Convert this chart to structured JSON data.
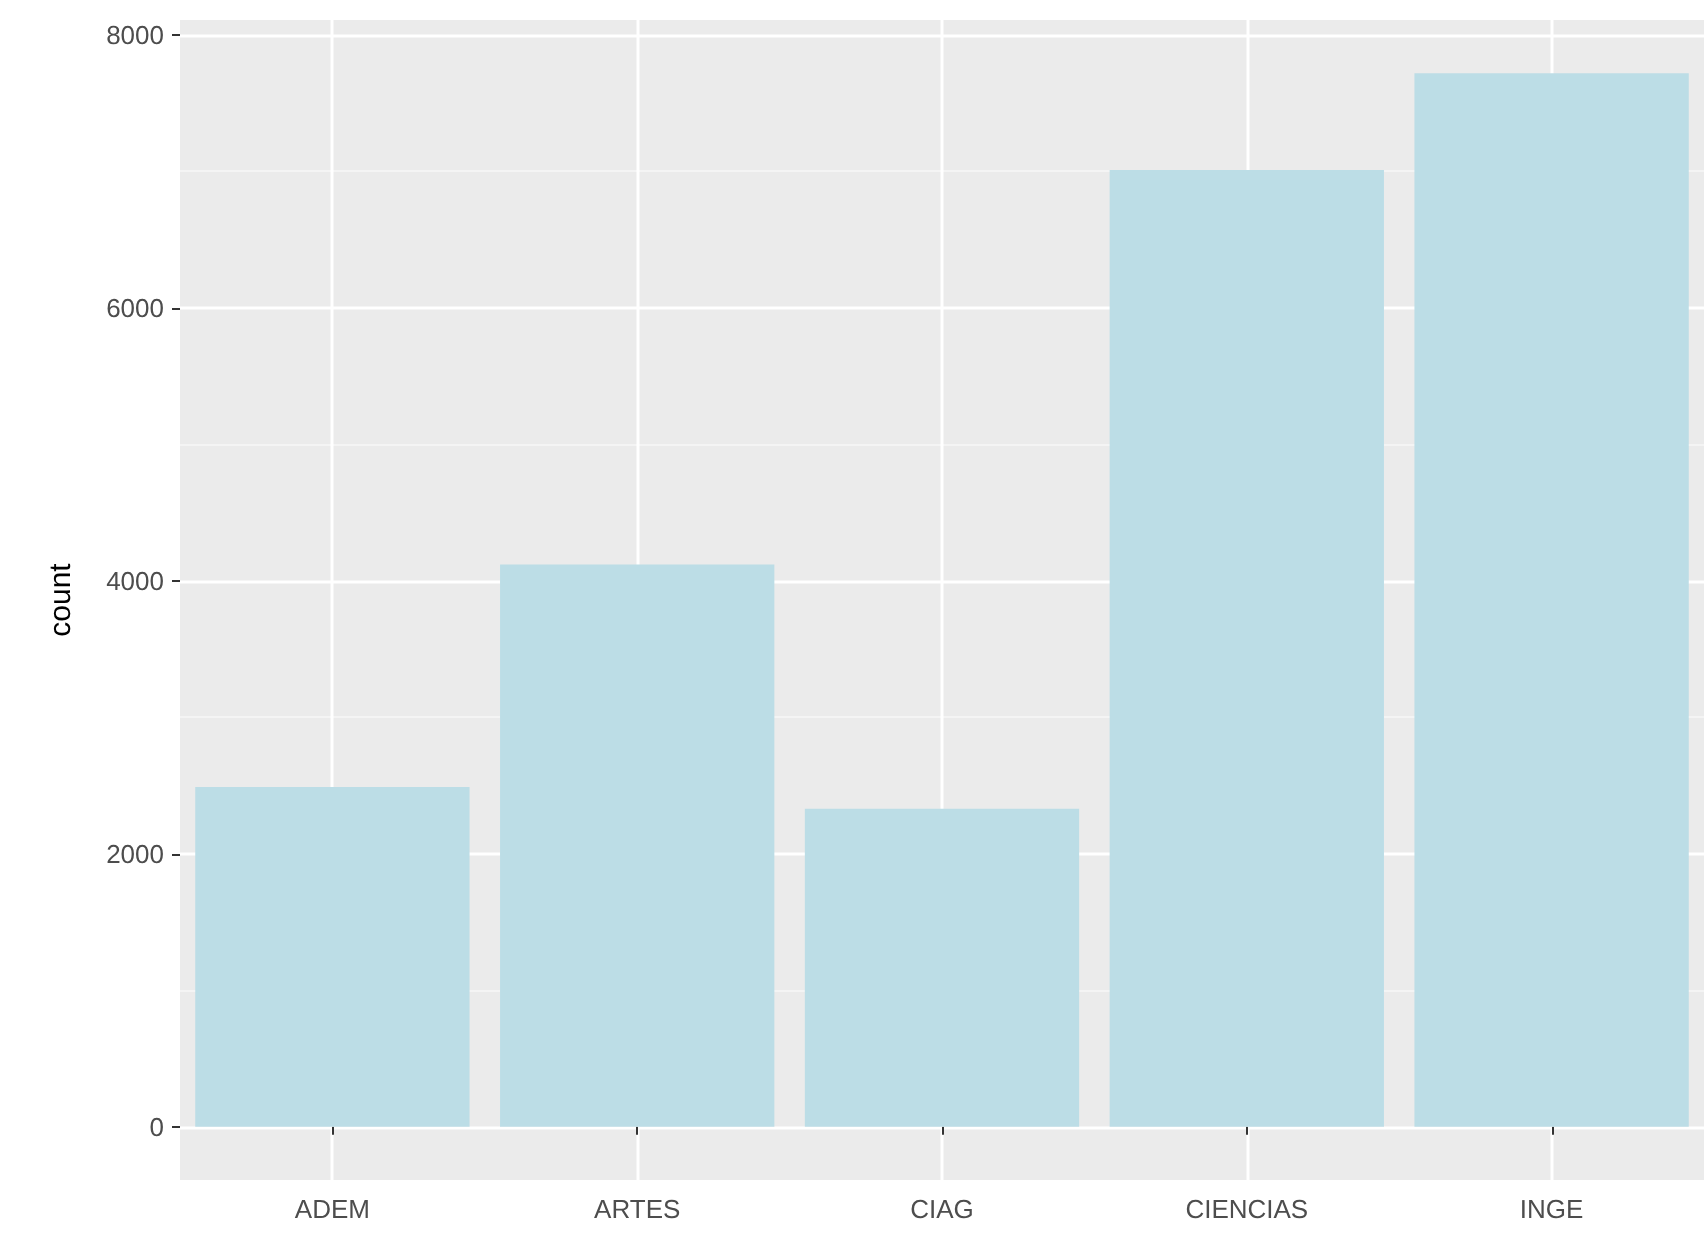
{
  "chart_data": {
    "type": "bar",
    "ylabel": "count",
    "categories": [
      "ADEM",
      "ARTES",
      "CIAG",
      "CIENCIAS",
      "INGE"
    ],
    "values": [
      2490,
      4120,
      2330,
      7010,
      7720
    ],
    "color": "#bcdde6",
    "ylim": [
      -390,
      8110
    ],
    "yticks": [
      0,
      2000,
      4000,
      6000,
      8000
    ],
    "grid": true
  }
}
